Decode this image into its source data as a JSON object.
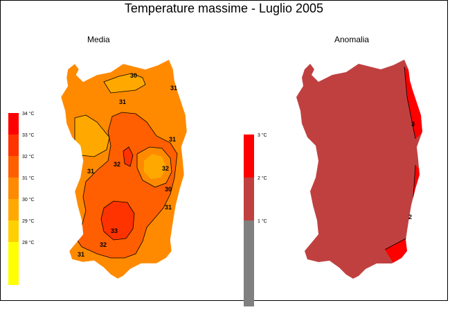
{
  "title": "Temperature massime - Luglio 2005",
  "panels": {
    "media": {
      "label": "Media",
      "legend": [
        {
          "label": "34 °C",
          "color": "#ff0000"
        },
        {
          "label": "33 °C",
          "color": "#ff3300"
        },
        {
          "label": "32 °C",
          "color": "#ff5f00"
        },
        {
          "label": "31 °C",
          "color": "#ff8a00"
        },
        {
          "label": "30 °C",
          "color": "#ffa900"
        },
        {
          "label": "29 °C",
          "color": "#ffd000"
        },
        {
          "label": "28 °C",
          "color": "#ffff00"
        }
      ],
      "contour_labels": [
        "30",
        "31",
        "31",
        "32",
        "31",
        "32",
        "30",
        "31",
        "33",
        "32",
        "31",
        "31"
      ]
    },
    "anomalia": {
      "label": "Anomalia",
      "legend": [
        {
          "label": "3 °C",
          "color": "#ff0000"
        },
        {
          "label": "2 °C",
          "color": "#c04040"
        },
        {
          "label": "1 °C",
          "color": "#808080"
        }
      ],
      "contour_labels": [
        "3",
        "2"
      ]
    }
  }
}
